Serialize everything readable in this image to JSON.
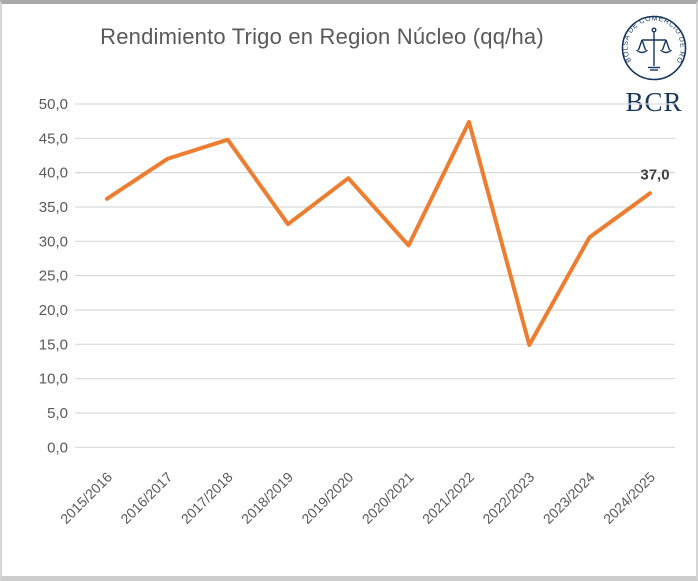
{
  "title": "Rendimiento Trigo en Region Núcleo (qq/ha)",
  "logo": {
    "text": "BCR",
    "seal_text": "BOLSA DE COMERCIO DE ROSARIO"
  },
  "chart_data": {
    "type": "line",
    "title": "Rendimiento Trigo en Region Núcleo (qq/ha)",
    "categories": [
      "2015/2016",
      "2016/2017",
      "2017/2018",
      "2018/2019",
      "2019/2020",
      "2020/2021",
      "2021/2022",
      "2022/2023",
      "2023/2024",
      "2024/2025"
    ],
    "values": [
      36.2,
      42.0,
      44.8,
      32.5,
      39.2,
      29.4,
      47.4,
      14.9,
      30.6,
      37.0
    ],
    "xlabel": "",
    "ylabel": "",
    "ylim": [
      0,
      50
    ],
    "ytick_step": 5,
    "ytick_labels": [
      "50,0",
      "45,0",
      "40,0",
      "35,0",
      "30,0",
      "25,0",
      "20,0",
      "15,0",
      "10,0",
      "5,0",
      "0,0"
    ],
    "xtick_angle": 45,
    "grid": true,
    "legend": "none",
    "last_point_label": "37,0",
    "colors": {
      "line": "#ed7d31",
      "grid": "#d9d9d9",
      "axis_text": "#595959",
      "title_text": "#595959",
      "data_label": "#3f3f3f",
      "logo_navy": "#17365d"
    }
  }
}
